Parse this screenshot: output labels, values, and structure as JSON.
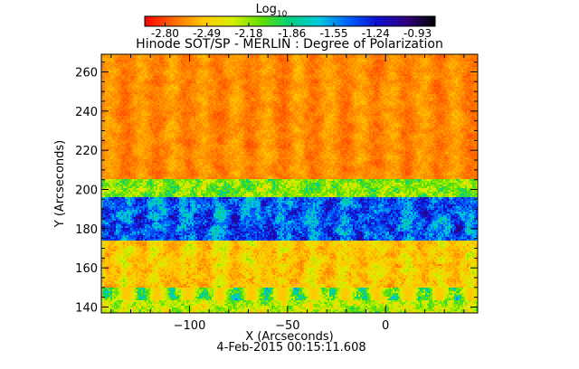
{
  "colorbar": {
    "label": "Log",
    "label_subscript": "10",
    "ticks": [
      "-2.80",
      "-2.49",
      "-2.18",
      "-1.86",
      "-1.55",
      "-1.24",
      "-0.93"
    ],
    "range": [
      -2.95,
      -0.8
    ],
    "colormap": [
      "#ff0000",
      "#ff6a00",
      "#ffc800",
      "#d8f000",
      "#60e000",
      "#00d080",
      "#00c8e0",
      "#0060ff",
      "#1010d0",
      "#300080",
      "#000000"
    ]
  },
  "chart_data": {
    "type": "heatmap",
    "title": "Hinode SOT/SP - MERLIN : Degree of Polarization",
    "xlabel": "X (Arcseconds)",
    "ylabel": "Y (Arcseconds)",
    "xlim": [
      -145,
      47
    ],
    "ylim": [
      137,
      269
    ],
    "xticks": [
      -100,
      -50,
      0
    ],
    "yticks": [
      140,
      160,
      180,
      200,
      220,
      240,
      260
    ],
    "scale": "log10",
    "value_range": [
      -2.95,
      -0.8
    ],
    "description_bands": [
      {
        "y_range": [
          137,
          150
        ],
        "level": "mixed"
      },
      {
        "y_range": [
          150,
          172
        ],
        "level": "low-moderate"
      },
      {
        "y_range": [
          172,
          200
        ],
        "level": "high"
      },
      {
        "y_range": [
          200,
          269
        ],
        "level": "low"
      }
    ]
  },
  "footer": {
    "date": "4-Feb-2015 00:15:11.608"
  }
}
